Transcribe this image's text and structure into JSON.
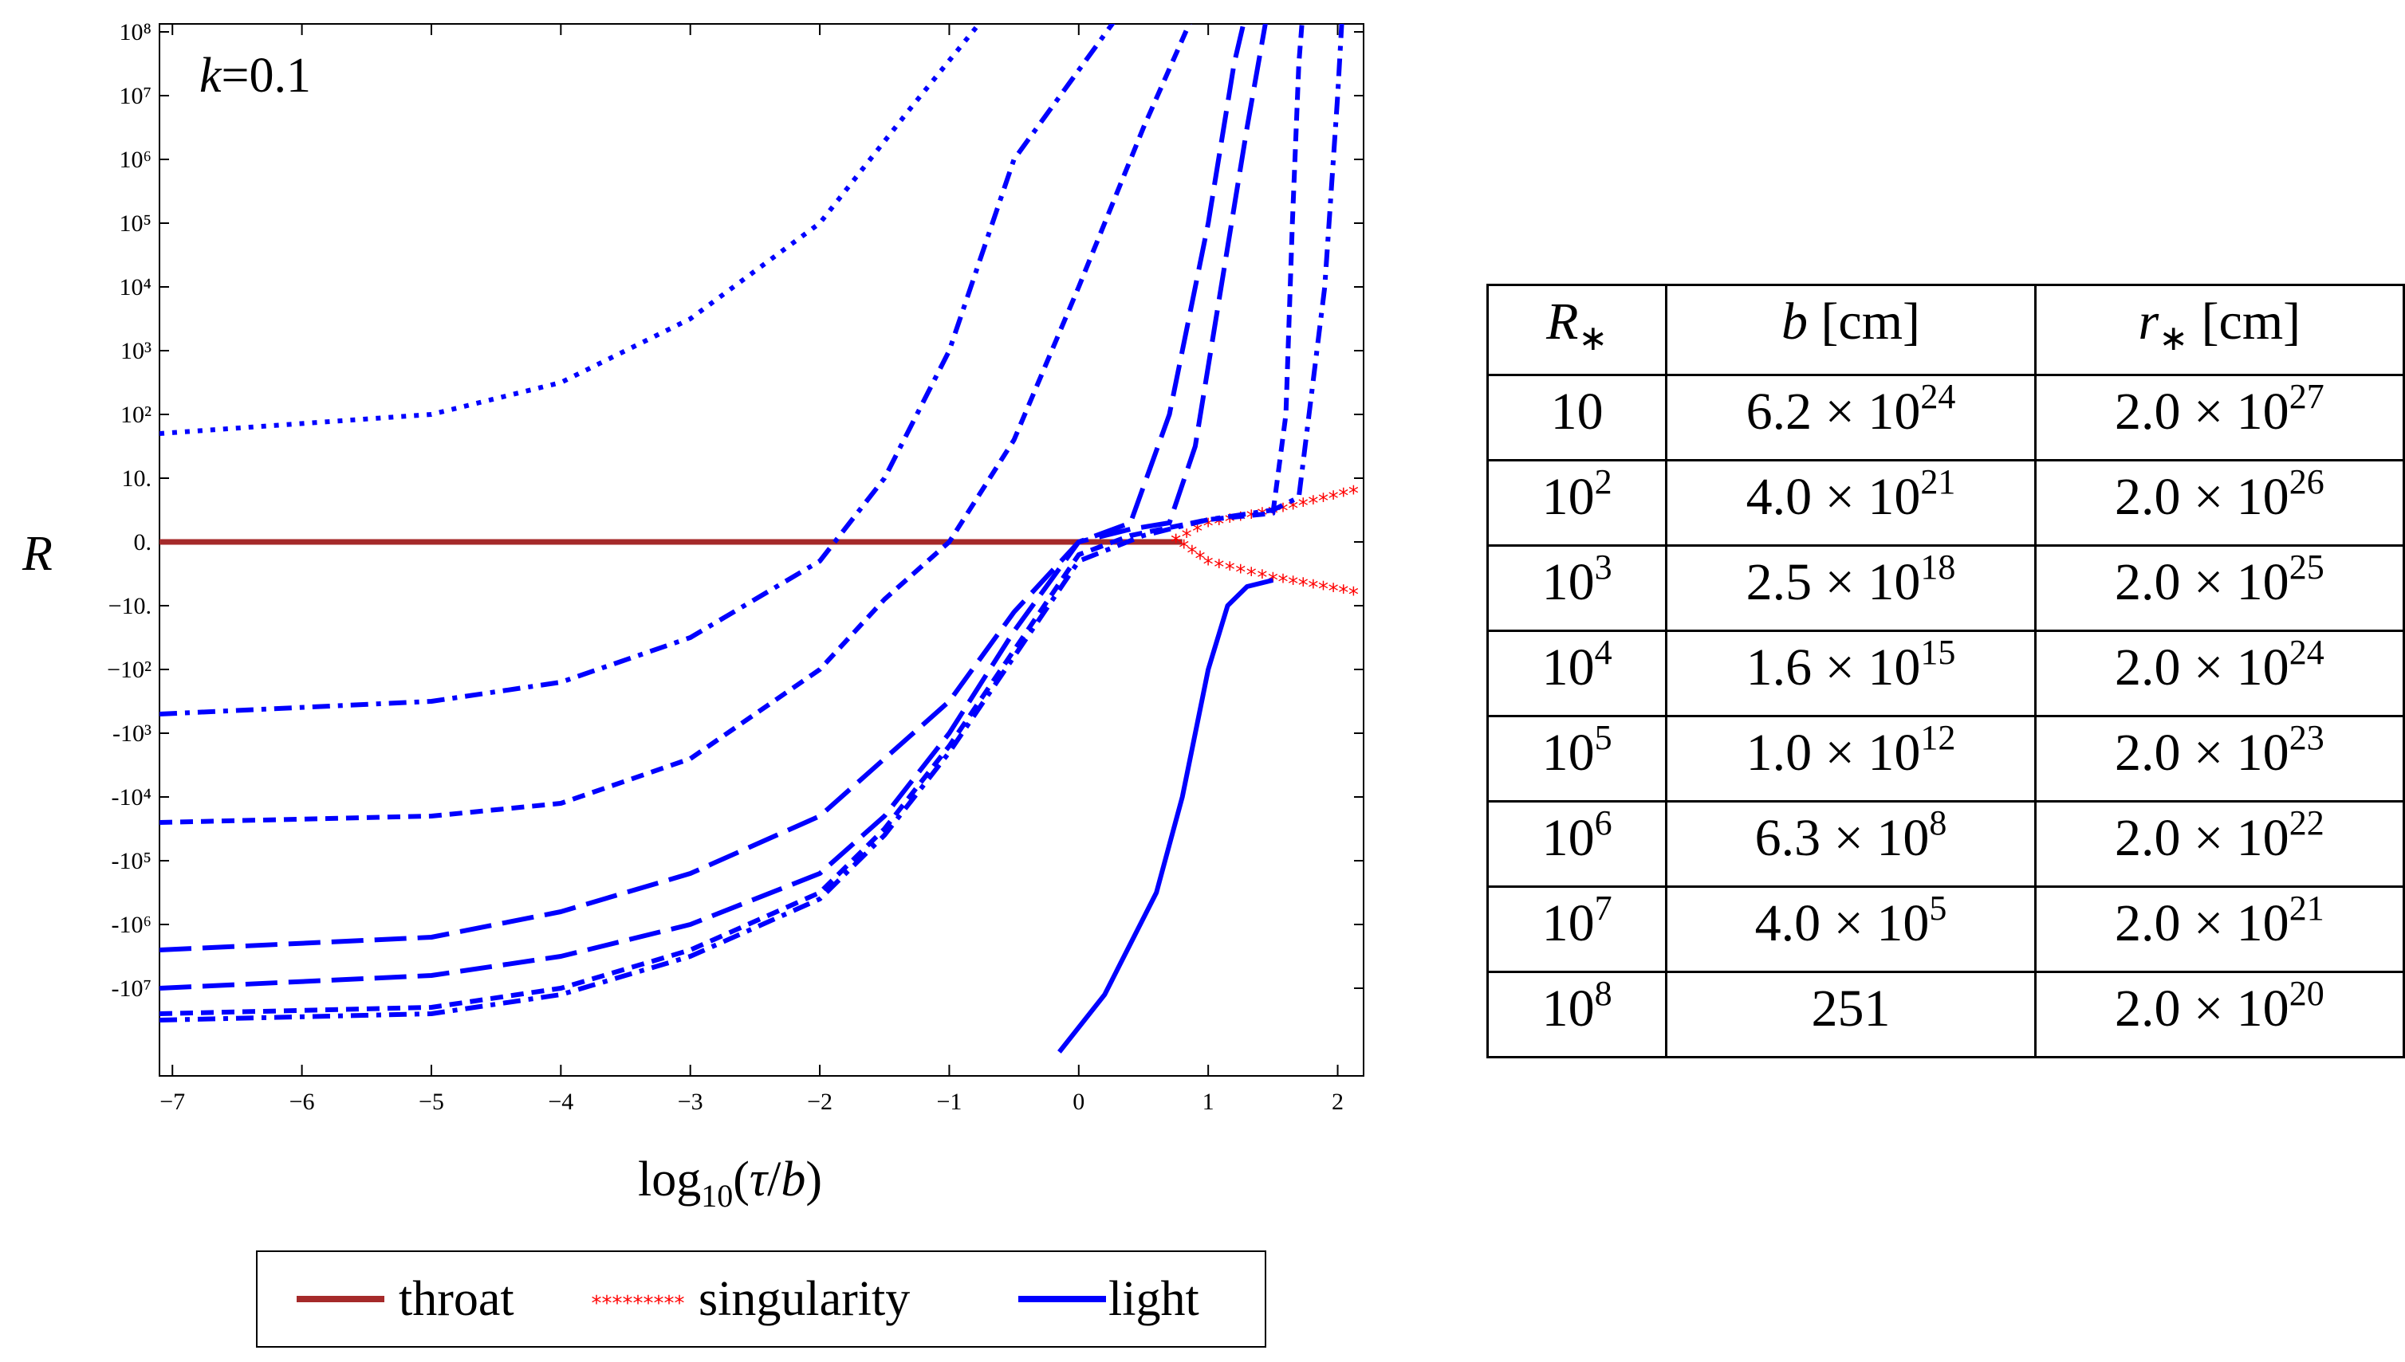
{
  "chart_data": {
    "type": "line",
    "annotation": "k=0.1",
    "xlabel": "log10(τ/b)",
    "ylabel": "R",
    "xlim": [
      -7.1,
      2.2
    ],
    "y_ticks": [
      "10⁸",
      "10⁷",
      "10⁶",
      "10⁵",
      "10⁴",
      "10³",
      "10²",
      "10.",
      "0.",
      "−10.",
      "−10²",
      "-10³",
      "-10⁴",
      "-10⁵",
      "-10⁶",
      "-10⁷"
    ],
    "x_ticks": [
      "−7",
      "−6",
      "−5",
      "−4",
      "−3",
      "−2",
      "−1",
      "0",
      "1",
      "2"
    ],
    "legend": {
      "placement": "bottom",
      "entries": [
        "throat",
        "singularity",
        "light"
      ]
    },
    "series": [
      {
        "name": "throat",
        "color": "#a52a2a",
        "style": "solid",
        "points": [
          [
            -7.1,
            0
          ],
          [
            0.8,
            0
          ]
        ]
      },
      {
        "name": "singularity",
        "color": "#ff0000",
        "style": "stars",
        "points": [
          [
            0.75,
            0
          ],
          [
            1.0,
            0.25
          ],
          [
            1.5,
            0.45
          ],
          [
            2.2,
            0.8
          ]
        ]
      },
      {
        "name": "singularity",
        "color": "#ff0000",
        "style": "stars",
        "points": [
          [
            0.75,
            0
          ],
          [
            1.0,
            -0.35
          ],
          [
            1.5,
            -0.6
          ],
          [
            2.2,
            -0.85
          ]
        ]
      },
      {
        "name": "light",
        "color": "#0000ff",
        "style": "dotted",
        "points": [
          [
            -7.1,
            1.7
          ],
          [
            -5,
            2.0
          ],
          [
            -4,
            2.5
          ],
          [
            -3,
            3.5
          ],
          [
            -2,
            5
          ],
          [
            -1.3,
            6.8
          ],
          [
            -0.5,
            8.8
          ]
        ]
      },
      {
        "name": "light",
        "color": "#0000ff",
        "style": "dashdot",
        "points": [
          [
            -7.1,
            -2.7
          ],
          [
            -5,
            -2.5
          ],
          [
            -4,
            -2.2
          ],
          [
            -3,
            -1.5
          ],
          [
            -2,
            -0.3
          ],
          [
            -1.5,
            1.0
          ],
          [
            -1.0,
            3.0
          ],
          [
            -0.5,
            6.0
          ],
          [
            0.5,
            8.8
          ]
        ]
      },
      {
        "name": "light",
        "color": "#0000ff",
        "style": "dash-short",
        "points": [
          [
            -7.1,
            -4.4
          ],
          [
            -5,
            -4.3
          ],
          [
            -4,
            -4.1
          ],
          [
            -3,
            -3.4
          ],
          [
            -2,
            -2
          ],
          [
            -1.5,
            -0.9
          ],
          [
            -1,
            0
          ],
          [
            -0.5,
            1.6
          ],
          [
            0,
            4
          ],
          [
            0.5,
            6.5
          ],
          [
            1.0,
            8.8
          ]
        ]
      },
      {
        "name": "light",
        "color": "#0000ff",
        "style": "dash-long",
        "points": [
          [
            -7.1,
            -6.4
          ],
          [
            -5,
            -6.2
          ],
          [
            -4,
            -5.8
          ],
          [
            -3,
            -5.2
          ],
          [
            -2,
            -4.3
          ],
          [
            -1.5,
            -3.4
          ],
          [
            -1,
            -2.5
          ],
          [
            -0.5,
            -1.1
          ],
          [
            0,
            0
          ],
          [
            0.4,
            0.3
          ],
          [
            0.7,
            2.0
          ],
          [
            1.0,
            5.0
          ],
          [
            1.2,
            7.5
          ],
          [
            1.35,
            8.8
          ]
        ]
      },
      {
        "name": "light",
        "color": "#0000ff",
        "style": "dash-long",
        "points": [
          [
            -7.1,
            -7.0
          ],
          [
            -5,
            -6.8
          ],
          [
            -4,
            -6.5
          ],
          [
            -3,
            -6.0
          ],
          [
            -2,
            -5.2
          ],
          [
            -1.5,
            -4.3
          ],
          [
            -1,
            -3.0
          ],
          [
            -0.5,
            -1.4
          ],
          [
            0,
            0
          ],
          [
            0.4,
            0.2
          ],
          [
            0.7,
            0.3
          ],
          [
            0.9,
            1.5
          ],
          [
            1.1,
            4.0
          ],
          [
            1.3,
            6.5
          ],
          [
            1.5,
            8.8
          ]
        ]
      },
      {
        "name": "light",
        "color": "#0000ff",
        "style": "dash-short",
        "points": [
          [
            -7.1,
            -7.4
          ],
          [
            -5,
            -7.3
          ],
          [
            -4,
            -7.0
          ],
          [
            -3,
            -6.4
          ],
          [
            -2,
            -5.5
          ],
          [
            -1.5,
            -4.5
          ],
          [
            -1,
            -3.2
          ],
          [
            -0.5,
            -1.7
          ],
          [
            0,
            -0.2
          ],
          [
            0.4,
            0.1
          ],
          [
            1.0,
            0.35
          ],
          [
            1.5,
            0.45
          ],
          [
            1.6,
            2.0
          ],
          [
            1.65,
            5.0
          ],
          [
            1.7,
            7.5
          ],
          [
            1.75,
            8.8
          ]
        ]
      },
      {
        "name": "light",
        "color": "#0000ff",
        "style": "dashdot",
        "points": [
          [
            -7.1,
            -7.5
          ],
          [
            -5,
            -7.4
          ],
          [
            -4,
            -7.1
          ],
          [
            -3,
            -6.5
          ],
          [
            -2,
            -5.6
          ],
          [
            -1.5,
            -4.6
          ],
          [
            -1,
            -3.3
          ],
          [
            -0.5,
            -1.8
          ],
          [
            0,
            -0.3
          ],
          [
            0.5,
            0.1
          ],
          [
            1.0,
            0.35
          ],
          [
            1.5,
            0.5
          ],
          [
            1.7,
            0.7
          ],
          [
            1.9,
            4.0
          ],
          [
            2.0,
            7.0
          ],
          [
            2.05,
            8.8
          ]
        ]
      },
      {
        "name": "light",
        "color": "#0000ff",
        "style": "solid",
        "points": [
          [
            -0.15,
            -8.0
          ],
          [
            0.2,
            -7.1
          ],
          [
            0.6,
            -5.5
          ],
          [
            0.8,
            -4.0
          ],
          [
            1.0,
            -2.0
          ],
          [
            1.15,
            -1.0
          ],
          [
            1.3,
            -0.7
          ],
          [
            1.5,
            -0.6
          ]
        ]
      }
    ]
  },
  "table": {
    "headers": [
      {
        "base": "R",
        "sub": "∗",
        "unit": ""
      },
      {
        "base": "b",
        "sub": "",
        "unit": " [cm]"
      },
      {
        "base": "r",
        "sub": "∗",
        "unit": " [cm]"
      }
    ],
    "rows": [
      {
        "r_base": "10",
        "r_exp": "",
        "b_mant": "6.2 × 10",
        "b_exp": "24",
        "rs_mant": "2.0 × 10",
        "rs_exp": "27"
      },
      {
        "r_base": "10",
        "r_exp": "2",
        "b_mant": "4.0 × 10",
        "b_exp": "21",
        "rs_mant": "2.0 × 10",
        "rs_exp": "26"
      },
      {
        "r_base": "10",
        "r_exp": "3",
        "b_mant": "2.5 × 10",
        "b_exp": "18",
        "rs_mant": "2.0 × 10",
        "rs_exp": "25"
      },
      {
        "r_base": "10",
        "r_exp": "4",
        "b_mant": "1.6 × 10",
        "b_exp": "15",
        "rs_mant": "2.0 × 10",
        "rs_exp": "24"
      },
      {
        "r_base": "10",
        "r_exp": "5",
        "b_mant": "1.0 × 10",
        "b_exp": "12",
        "rs_mant": "2.0 × 10",
        "rs_exp": "23"
      },
      {
        "r_base": "10",
        "r_exp": "6",
        "b_mant": "6.3 × 10",
        "b_exp": "8",
        "rs_mant": "2.0 × 10",
        "rs_exp": "22"
      },
      {
        "r_base": "10",
        "r_exp": "7",
        "b_mant": "4.0 × 10",
        "b_exp": "5",
        "rs_mant": "2.0 × 10",
        "rs_exp": "21"
      },
      {
        "r_base": "10",
        "r_exp": "8",
        "b_mant": "251",
        "b_exp": "",
        "rs_mant": "2.0 × 10",
        "rs_exp": "20"
      }
    ]
  }
}
